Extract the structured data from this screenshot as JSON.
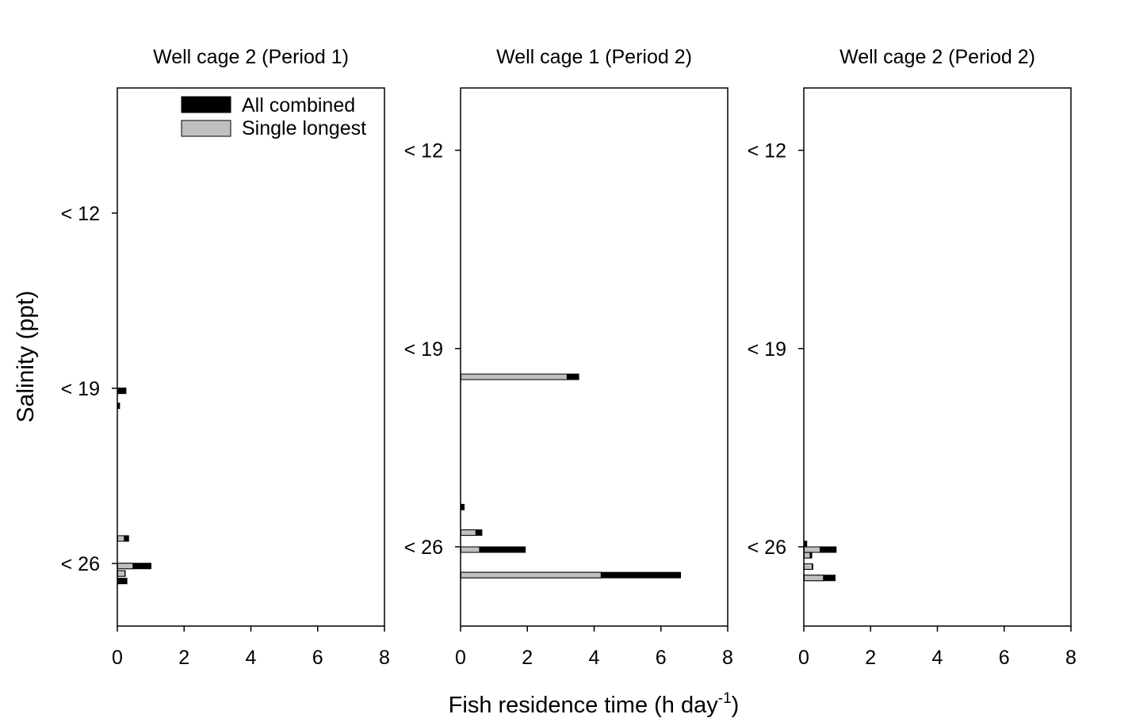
{
  "figure": {
    "ylabel": "Salinity (ppt)",
    "xlabel_main": "Fish residence time (h day",
    "xlabel_sup": "-1",
    "xlabel_end": ")"
  },
  "legend": [
    {
      "label": "All combined",
      "color": "#000000"
    },
    {
      "label": "Single longest",
      "color": "#c0c0c0"
    }
  ],
  "chart_data": [
    {
      "type": "bar",
      "orientation": "horizontal",
      "title": "Well cage 2 (Period 1)",
      "xlim": [
        0,
        8
      ],
      "xticks": [
        0,
        2,
        4,
        6,
        8
      ],
      "ylim": [
        7,
        28.5
      ],
      "yticks": [
        {
          "value": 12,
          "label": "< 12"
        },
        {
          "value": 19,
          "label": "< 19"
        },
        {
          "value": 26,
          "label": "< 26"
        }
      ],
      "legend_position": "top-right",
      "series": [
        {
          "name": "All combined",
          "color": "#000000"
        },
        {
          "name": "Single longest",
          "color": "#c0c0c0"
        }
      ],
      "bars": [
        {
          "salinity": 19.1,
          "all_combined": 0.27,
          "single_longest": 0.05
        },
        {
          "salinity": 19.7,
          "all_combined": 0.08,
          "single_longest": 0.02
        },
        {
          "salinity": 25.0,
          "all_combined": 0.35,
          "single_longest": 0.22
        },
        {
          "salinity": 26.1,
          "all_combined": 1.02,
          "single_longest": 0.48
        },
        {
          "salinity": 26.4,
          "all_combined": 0.25,
          "single_longest": 0.24
        },
        {
          "salinity": 26.7,
          "all_combined": 0.3,
          "single_longest": 0.05
        }
      ]
    },
    {
      "type": "bar",
      "orientation": "horizontal",
      "title": "Well cage 1 (Period 2)",
      "xlim": [
        0,
        8
      ],
      "xticks": [
        0,
        2,
        4,
        6,
        8
      ],
      "ylim": [
        9.8,
        28.8
      ],
      "yticks": [
        {
          "value": 12,
          "label": "< 12"
        },
        {
          "value": 19,
          "label": "< 19"
        },
        {
          "value": 26,
          "label": "< 26"
        }
      ],
      "series": [
        {
          "name": "All combined",
          "color": "#000000"
        },
        {
          "name": "Single longest",
          "color": "#c0c0c0"
        }
      ],
      "bars": [
        {
          "salinity": 20.0,
          "all_combined": 3.55,
          "single_longest": 3.2
        },
        {
          "salinity": 24.6,
          "all_combined": 0.12,
          "single_longest": 0.02
        },
        {
          "salinity": 25.5,
          "all_combined": 0.65,
          "single_longest": 0.47
        },
        {
          "salinity": 26.1,
          "all_combined": 1.95,
          "single_longest": 0.58
        },
        {
          "salinity": 27.0,
          "all_combined": 6.6,
          "single_longest": 4.22
        }
      ]
    },
    {
      "type": "bar",
      "orientation": "horizontal",
      "title": "Well cage 2 (Period 2)",
      "xlim": [
        0,
        8
      ],
      "xticks": [
        0,
        2,
        4,
        6,
        8
      ],
      "ylim": [
        9.8,
        28.8
      ],
      "yticks": [
        {
          "value": 12,
          "label": "< 12"
        },
        {
          "value": 19,
          "label": "< 19"
        },
        {
          "value": 26,
          "label": "< 26"
        }
      ],
      "series": [
        {
          "name": "All combined",
          "color": "#000000"
        },
        {
          "name": "Single longest",
          "color": "#c0c0c0"
        }
      ],
      "bars": [
        {
          "salinity": 25.9,
          "all_combined": 0.1,
          "single_longest": 0.02
        },
        {
          "salinity": 26.1,
          "all_combined": 0.98,
          "single_longest": 0.5
        },
        {
          "salinity": 26.3,
          "all_combined": 0.25,
          "single_longest": 0.2
        },
        {
          "salinity": 26.7,
          "all_combined": 0.28,
          "single_longest": 0.26
        },
        {
          "salinity": 27.1,
          "all_combined": 0.95,
          "single_longest": 0.6
        }
      ]
    }
  ]
}
